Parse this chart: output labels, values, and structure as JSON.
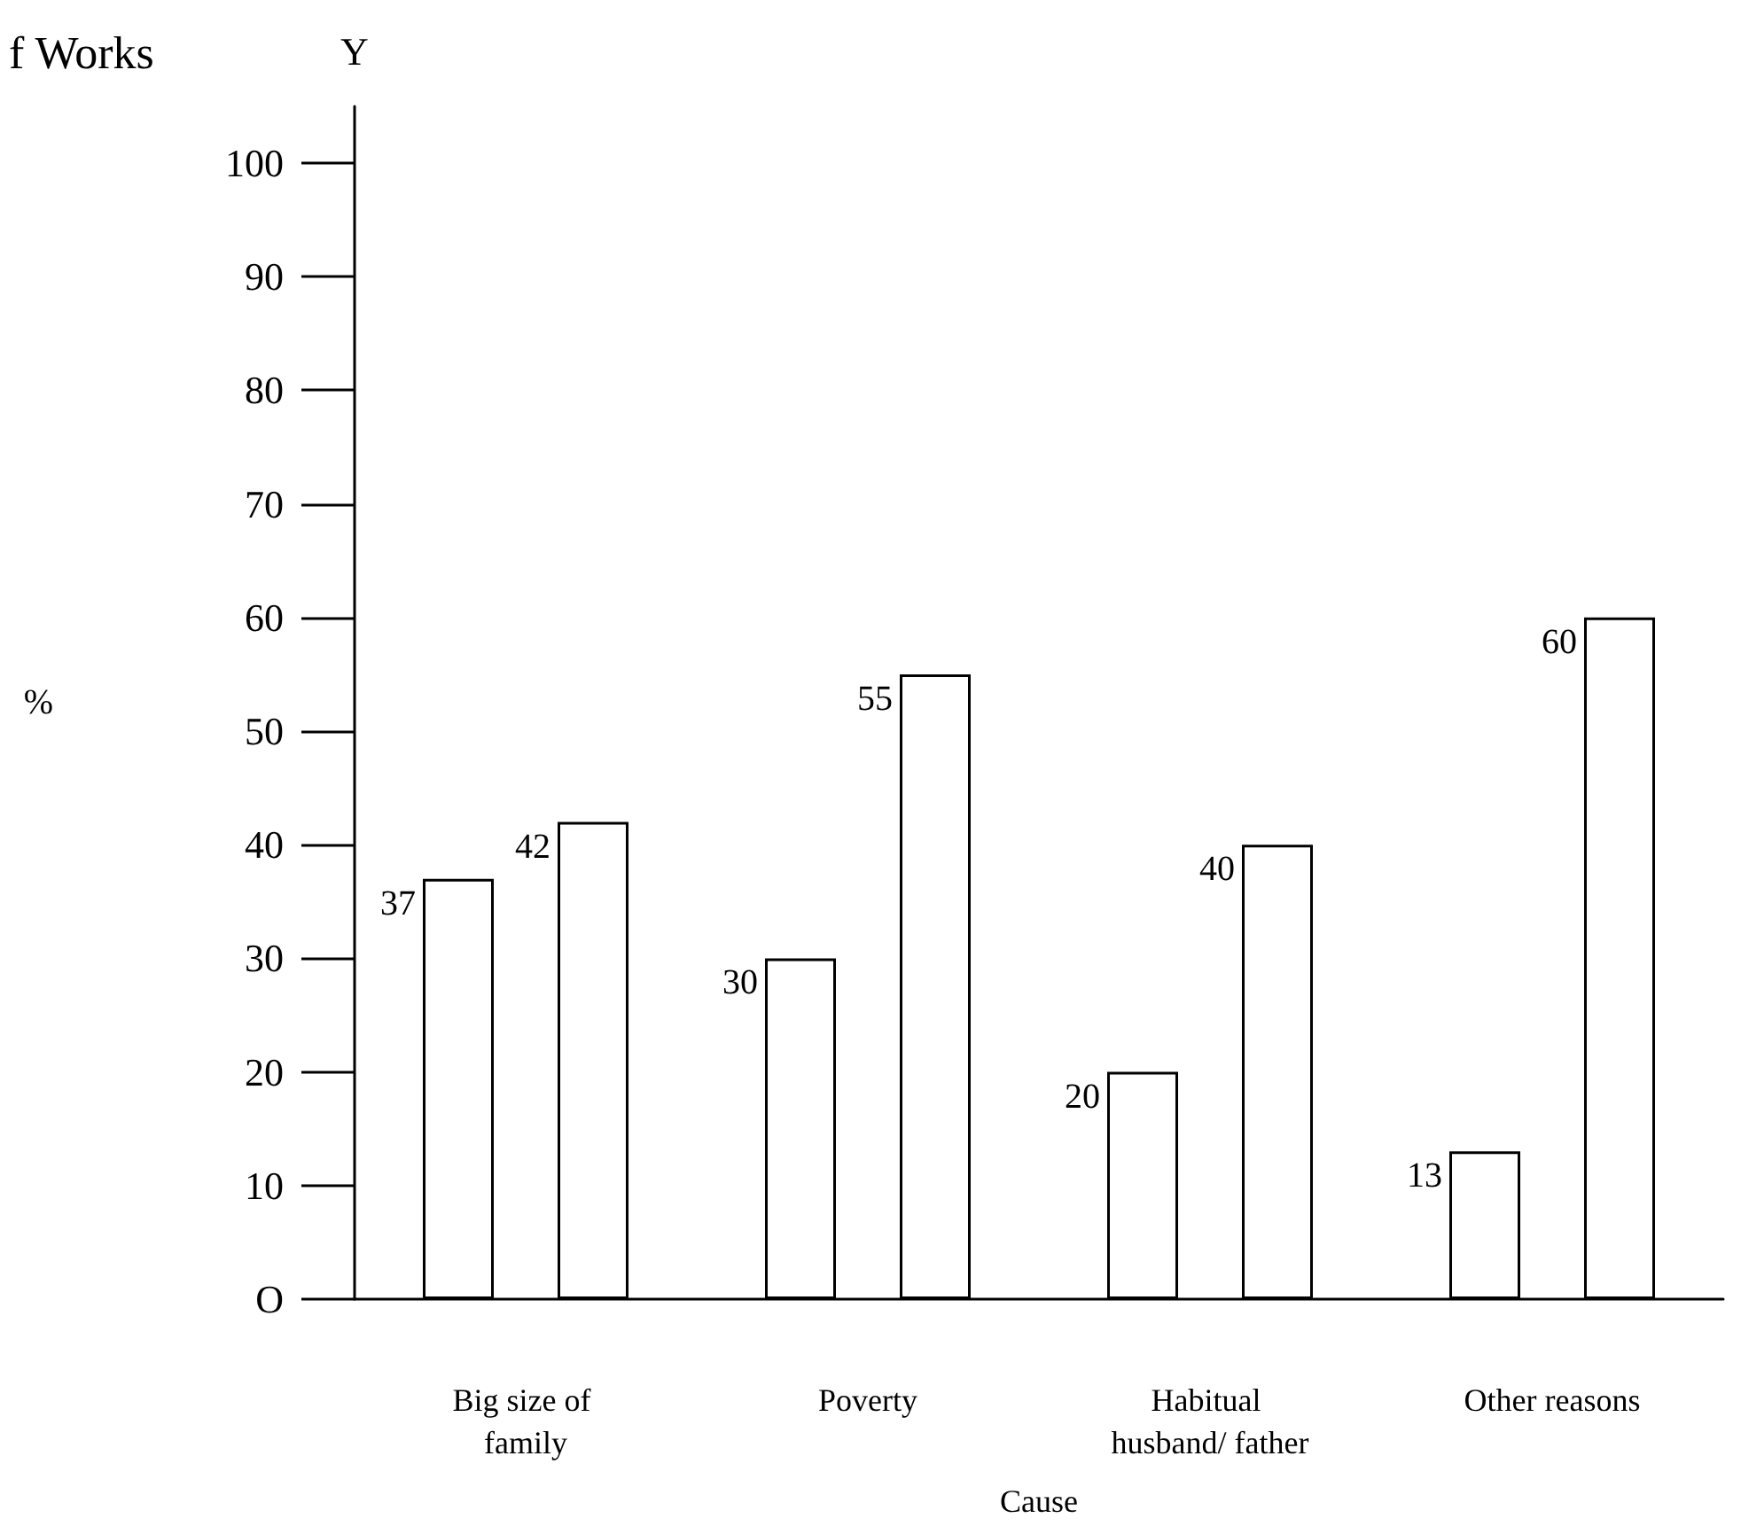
{
  "chart_data": {
    "type": "bar",
    "title": "f Works",
    "xlabel": "Cause",
    "ylabel": "%",
    "annotations": [
      "Y"
    ],
    "categories": [
      "Big size of family",
      "Poverty",
      "Habitual husband/ father",
      "Other reasons"
    ],
    "series": [
      {
        "color": "#ffffff",
        "values": [
          37,
          30,
          20,
          13
        ]
      },
      {
        "color": "#ffffff",
        "values": [
          42,
          55,
          40,
          60
        ]
      }
    ],
    "ylim": [
      0,
      105
    ],
    "yticks": [
      {
        "value": 0,
        "label": "O"
      },
      10,
      20,
      30,
      40,
      50,
      60,
      70,
      80,
      90,
      100
    ],
    "data_labels": true,
    "grid": false
  }
}
